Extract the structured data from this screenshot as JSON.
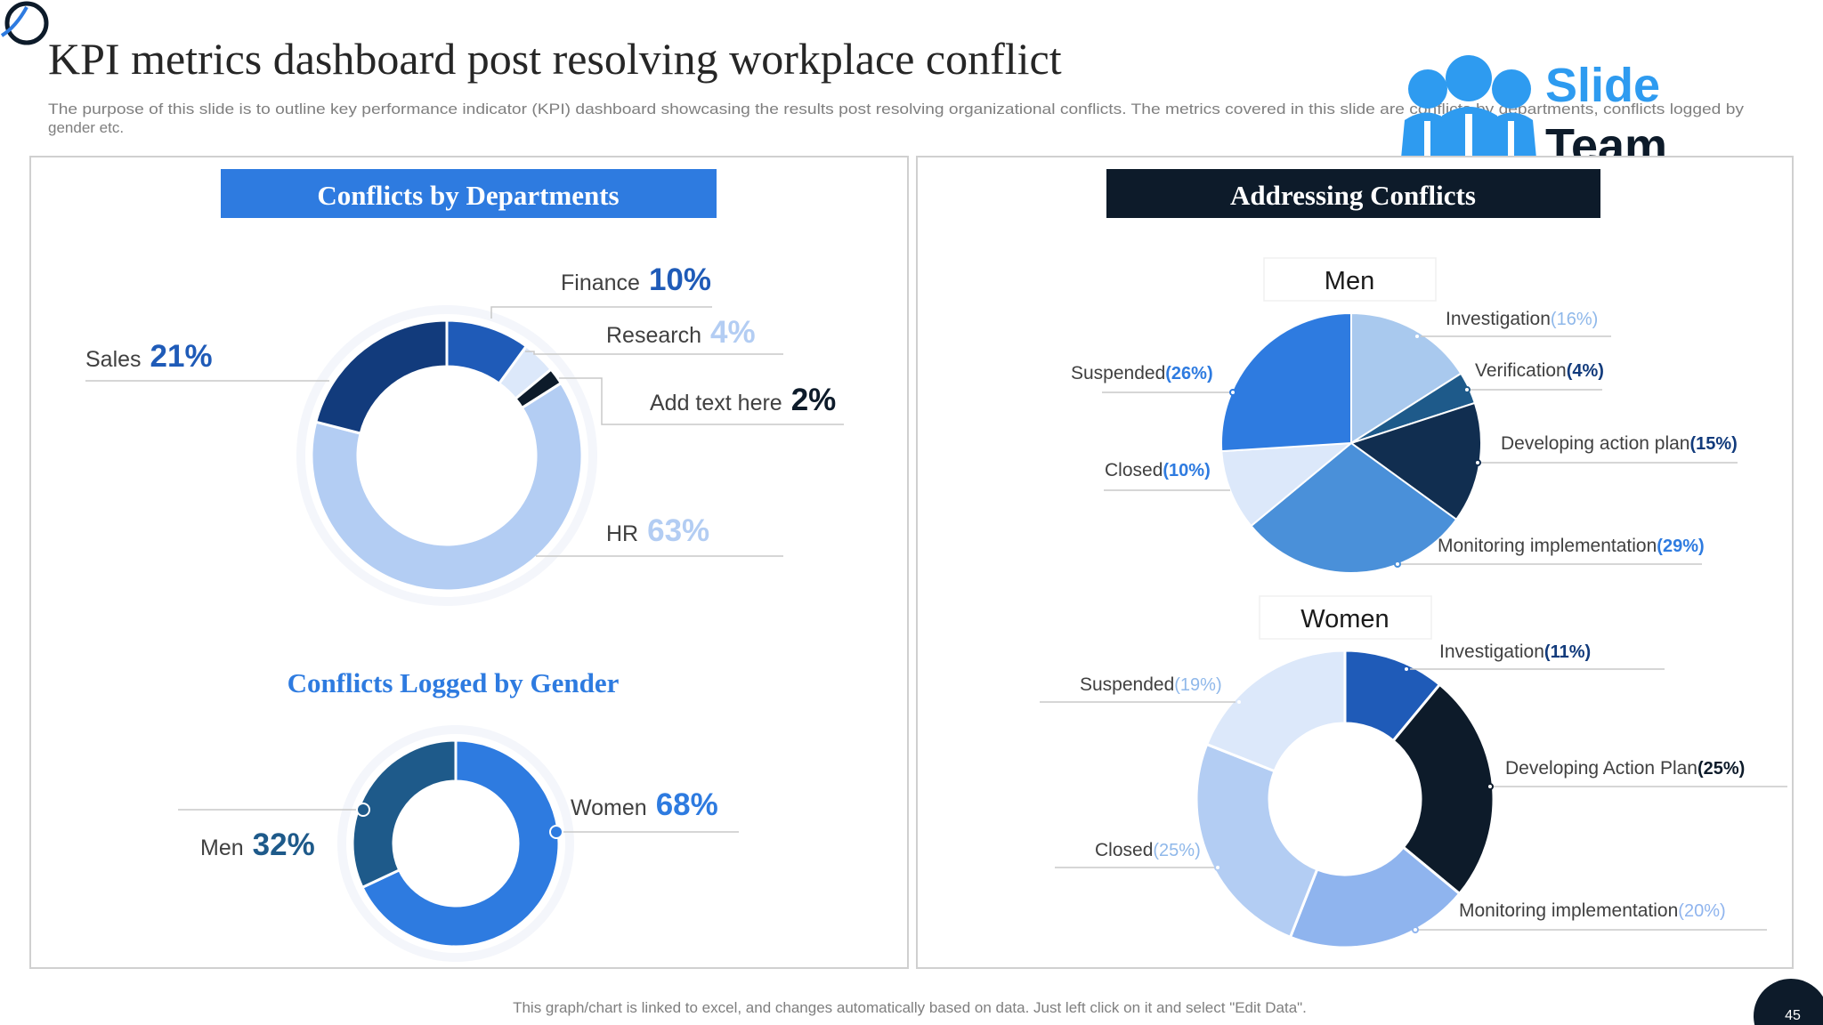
{
  "slide": {
    "title": "KPI metrics dashboard post resolving workplace conflict",
    "description_line1": "The purpose of this slide is to outline key performance indicator (KPI) dashboard showcasing the results post resolving organizational conflicts. The metrics covered in this slide are conflicts by departments, conflicts logged by",
    "description_line2": "gender etc.",
    "footer_note": "This graph/chart is linked to excel, and changes automatically based on data. Just left click on it and select \"Edit Data\".",
    "page_number": "45"
  },
  "logo": {
    "line1": "Slide",
    "line2": "Team"
  },
  "colors": {
    "primary": "#2E7BE0",
    "dark_navy": "#0D1B2A",
    "navy": "#123B7C",
    "royal": "#1F5BB8",
    "light_blue": "#B3CDF3",
    "pale_blue": "#DCE8FA",
    "mid_blue": "#4A90D9",
    "steel_blue": "#1E5A8A",
    "text_gray": "#404040"
  },
  "chart_data": [
    {
      "type": "pie",
      "title": "Conflicts by Departments",
      "categories": [
        "Finance",
        "Research",
        "Add text here",
        "HR",
        "Sales"
      ],
      "values": [
        10,
        4,
        2,
        63,
        21
      ],
      "labels": [
        "10%",
        "4%",
        "2%",
        "63%",
        "21%"
      ]
    },
    {
      "type": "pie",
      "title": "Conflicts Logged by Gender",
      "categories": [
        "Women",
        "Men"
      ],
      "values": [
        68,
        32
      ],
      "labels": [
        "68%",
        "32%"
      ]
    },
    {
      "type": "pie",
      "title": "Addressing Conflicts",
      "subtitle": "Men",
      "categories": [
        "Investigation",
        "Verification",
        "Developing action plan",
        "Monitoring implementation",
        "Closed",
        "Suspended"
      ],
      "values": [
        16,
        4,
        15,
        29,
        10,
        26
      ],
      "labels": [
        "(16%)",
        "(4%)",
        "(15%)",
        "(29%)",
        "(10%)",
        "(26%)"
      ]
    },
    {
      "type": "pie",
      "title": "Addressing Conflicts",
      "subtitle": "Women",
      "categories": [
        "Investigation",
        "Developing Action Plan",
        "Monitoring implementation",
        "Closed",
        "Suspended"
      ],
      "values": [
        11,
        25,
        20,
        25,
        19
      ],
      "labels": [
        "(11%)",
        "(25%)",
        "(20%)",
        "(25%)",
        "(19%)"
      ]
    }
  ]
}
